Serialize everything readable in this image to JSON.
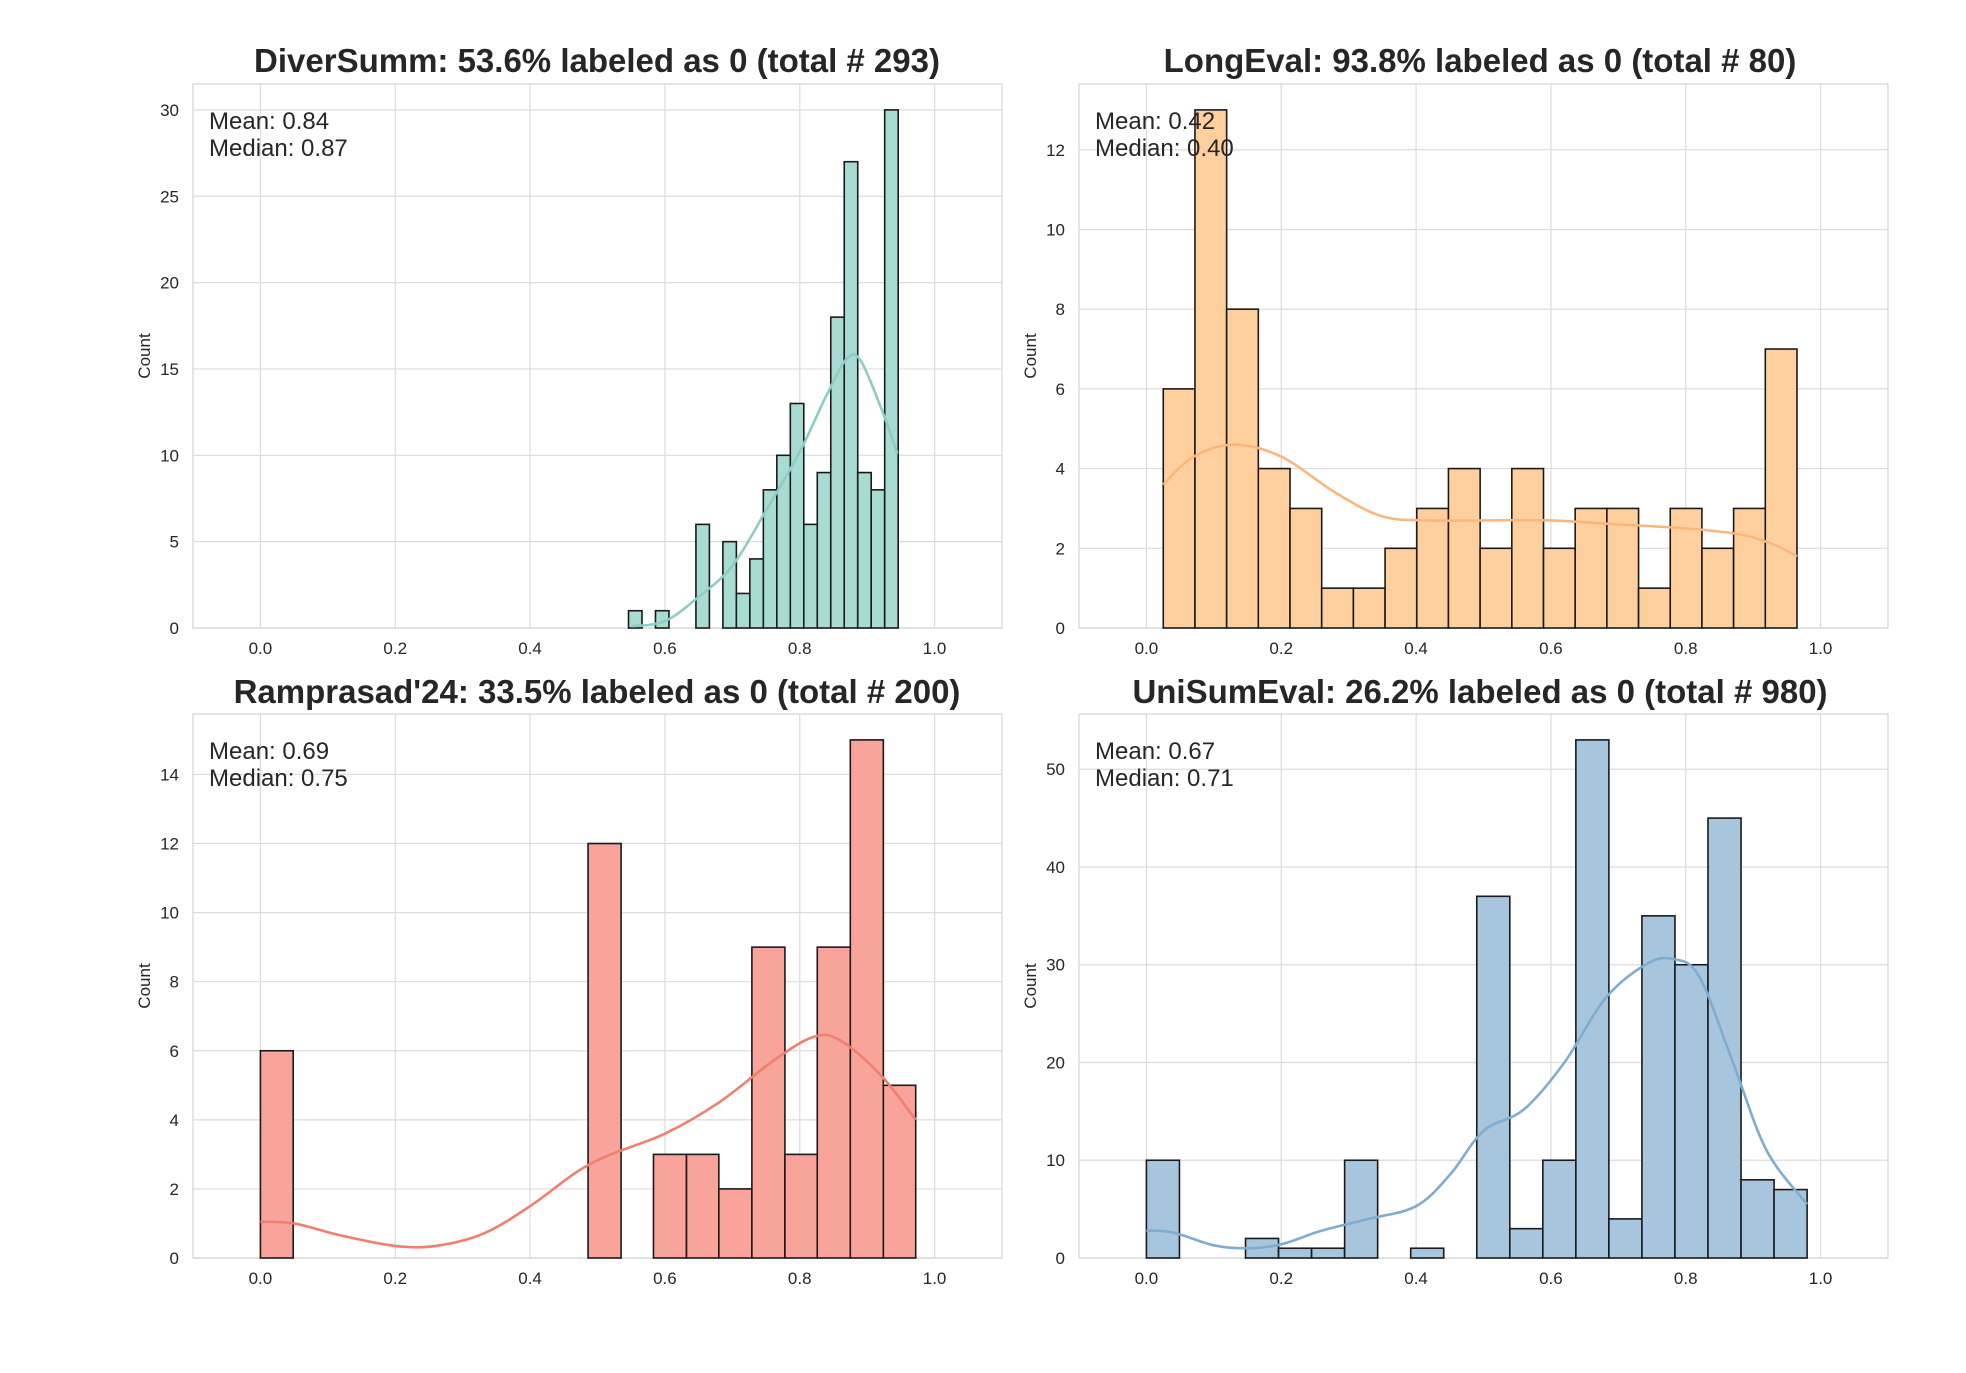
{
  "chart_data": [
    {
      "type": "bar",
      "subtype": "histogram",
      "title": "DiverSumm: 53.6% labeled as 0 (total # 293)",
      "ylabel": "Count",
      "xlabel": "",
      "xlim": [
        -0.1,
        1.1
      ],
      "ylim": [
        0,
        31.5
      ],
      "xticks": [
        "0.0",
        "0.2",
        "0.4",
        "0.6",
        "0.8",
        "1.0"
      ],
      "yticks": [
        "0",
        "5",
        "10",
        "15",
        "20",
        "25",
        "30"
      ],
      "grid": true,
      "color": "#a8dcd3",
      "line_color": "#8ecdc4",
      "stats": [
        "Mean: 0.84",
        "Median: 0.87"
      ],
      "bins": [
        {
          "x0": 0.546,
          "x1": 0.566,
          "count": 1
        },
        {
          "x0": 0.586,
          "x1": 0.606,
          "count": 1
        },
        {
          "x0": 0.646,
          "x1": 0.666,
          "count": 6
        },
        {
          "x0": 0.686,
          "x1": 0.706,
          "count": 5
        },
        {
          "x0": 0.706,
          "x1": 0.726,
          "count": 2
        },
        {
          "x0": 0.726,
          "x1": 0.746,
          "count": 4
        },
        {
          "x0": 0.746,
          "x1": 0.766,
          "count": 8
        },
        {
          "x0": 0.766,
          "x1": 0.786,
          "count": 10
        },
        {
          "x0": 0.786,
          "x1": 0.806,
          "count": 13
        },
        {
          "x0": 0.806,
          "x1": 0.826,
          "count": 6
        },
        {
          "x0": 0.826,
          "x1": 0.846,
          "count": 9
        },
        {
          "x0": 0.846,
          "x1": 0.866,
          "count": 18
        },
        {
          "x0": 0.866,
          "x1": 0.886,
          "count": 27
        },
        {
          "x0": 0.886,
          "x1": 0.906,
          "count": 9
        },
        {
          "x0": 0.906,
          "x1": 0.926,
          "count": 8
        },
        {
          "x0": 0.926,
          "x1": 0.946,
          "count": 30
        }
      ],
      "kde": [
        [
          0.55,
          0.1
        ],
        [
          0.6,
          0.4
        ],
        [
          0.65,
          1.8
        ],
        [
          0.7,
          3.6
        ],
        [
          0.75,
          6.8
        ],
        [
          0.8,
          10.2
        ],
        [
          0.84,
          13.5
        ],
        [
          0.87,
          15.6
        ],
        [
          0.89,
          15.5
        ],
        [
          0.92,
          12.8
        ],
        [
          0.945,
          10.1
        ]
      ]
    },
    {
      "type": "bar",
      "subtype": "histogram",
      "title": "LongEval: 93.8% labeled as 0 (total # 80)",
      "ylabel": "Count",
      "xlabel": "",
      "xlim": [
        -0.1,
        1.1
      ],
      "ylim": [
        0,
        13.65
      ],
      "xticks": [
        "0.0",
        "0.2",
        "0.4",
        "0.6",
        "0.8",
        "1.0"
      ],
      "yticks": [
        "0",
        "2",
        "4",
        "6",
        "8",
        "10",
        "12"
      ],
      "grid": true,
      "color": "#ffd09e",
      "line_color": "#f9b77c",
      "stats": [
        "Mean: 0.42",
        "Median: 0.40"
      ],
      "bins": [
        {
          "x0": 0.025,
          "x1": 0.072,
          "count": 6
        },
        {
          "x0": 0.072,
          "x1": 0.119,
          "count": 13
        },
        {
          "x0": 0.119,
          "x1": 0.166,
          "count": 8
        },
        {
          "x0": 0.166,
          "x1": 0.213,
          "count": 4
        },
        {
          "x0": 0.213,
          "x1": 0.26,
          "count": 3
        },
        {
          "x0": 0.26,
          "x1": 0.307,
          "count": 1
        },
        {
          "x0": 0.307,
          "x1": 0.354,
          "count": 1
        },
        {
          "x0": 0.354,
          "x1": 0.401,
          "count": 2
        },
        {
          "x0": 0.401,
          "x1": 0.448,
          "count": 3
        },
        {
          "x0": 0.448,
          "x1": 0.495,
          "count": 4
        },
        {
          "x0": 0.495,
          "x1": 0.542,
          "count": 2
        },
        {
          "x0": 0.542,
          "x1": 0.589,
          "count": 4
        },
        {
          "x0": 0.589,
          "x1": 0.636,
          "count": 2
        },
        {
          "x0": 0.636,
          "x1": 0.683,
          "count": 3
        },
        {
          "x0": 0.683,
          "x1": 0.73,
          "count": 3
        },
        {
          "x0": 0.73,
          "x1": 0.777,
          "count": 1
        },
        {
          "x0": 0.777,
          "x1": 0.824,
          "count": 3
        },
        {
          "x0": 0.824,
          "x1": 0.871,
          "count": 2
        },
        {
          "x0": 0.871,
          "x1": 0.918,
          "count": 3
        },
        {
          "x0": 0.918,
          "x1": 0.965,
          "count": 7
        }
      ],
      "kde": [
        [
          0.025,
          3.6
        ],
        [
          0.07,
          4.3
        ],
        [
          0.13,
          4.6
        ],
        [
          0.2,
          4.3
        ],
        [
          0.28,
          3.4
        ],
        [
          0.35,
          2.8
        ],
        [
          0.42,
          2.7
        ],
        [
          0.5,
          2.7
        ],
        [
          0.6,
          2.7
        ],
        [
          0.7,
          2.6
        ],
        [
          0.8,
          2.5
        ],
        [
          0.88,
          2.35
        ],
        [
          0.93,
          2.1
        ],
        [
          0.965,
          1.8
        ]
      ]
    },
    {
      "type": "bar",
      "subtype": "histogram",
      "title": "Ramprasad'24: 33.5% labeled as 0 (total # 200)",
      "ylabel": "Count",
      "xlabel": "",
      "xlim": [
        -0.1,
        1.1
      ],
      "ylim": [
        0,
        15.75
      ],
      "xticks": [
        "0.0",
        "0.2",
        "0.4",
        "0.6",
        "0.8",
        "1.0"
      ],
      "yticks": [
        "0",
        "2",
        "4",
        "6",
        "8",
        "10",
        "12",
        "14"
      ],
      "grid": true,
      "color": "#f9a49a",
      "line_color": "#ef7f6f",
      "stats": [
        "Mean: 0.69",
        "Median: 0.75"
      ],
      "bins": [
        {
          "x0": 0.0,
          "x1": 0.0486,
          "count": 6
        },
        {
          "x0": 0.486,
          "x1": 0.535,
          "count": 12
        },
        {
          "x0": 0.583,
          "x1": 0.632,
          "count": 3
        },
        {
          "x0": 0.632,
          "x1": 0.68,
          "count": 3
        },
        {
          "x0": 0.68,
          "x1": 0.729,
          "count": 2
        },
        {
          "x0": 0.729,
          "x1": 0.778,
          "count": 9
        },
        {
          "x0": 0.778,
          "x1": 0.826,
          "count": 3
        },
        {
          "x0": 0.826,
          "x1": 0.875,
          "count": 9
        },
        {
          "x0": 0.875,
          "x1": 0.924,
          "count": 15
        },
        {
          "x0": 0.924,
          "x1": 0.972,
          "count": 5
        }
      ],
      "kde": [
        [
          0.0,
          1.05
        ],
        [
          0.05,
          1.0
        ],
        [
          0.12,
          0.65
        ],
        [
          0.2,
          0.35
        ],
        [
          0.26,
          0.35
        ],
        [
          0.33,
          0.7
        ],
        [
          0.4,
          1.5
        ],
        [
          0.47,
          2.5
        ],
        [
          0.52,
          3.0
        ],
        [
          0.6,
          3.6
        ],
        [
          0.68,
          4.5
        ],
        [
          0.76,
          5.7
        ],
        [
          0.82,
          6.4
        ],
        [
          0.86,
          6.3
        ],
        [
          0.92,
          5.3
        ],
        [
          0.972,
          4.0
        ]
      ]
    },
    {
      "type": "bar",
      "subtype": "histogram",
      "title": "UniSumEval: 26.2% labeled as 0 (total # 980)",
      "ylabel": "Count",
      "xlabel": "",
      "xlim": [
        -0.1,
        1.1
      ],
      "ylim": [
        0,
        55.65
      ],
      "xticks": [
        "0.0",
        "0.2",
        "0.4",
        "0.6",
        "0.8",
        "1.0"
      ],
      "yticks": [
        "0",
        "10",
        "20",
        "30",
        "40",
        "50"
      ],
      "grid": true,
      "color": "#a7c6de",
      "line_color": "#7fadd0",
      "stats": [
        "Mean: 0.67",
        "Median: 0.71"
      ],
      "bins": [
        {
          "x0": 0.0,
          "x1": 0.049,
          "count": 10
        },
        {
          "x0": 0.147,
          "x1": 0.196,
          "count": 2
        },
        {
          "x0": 0.196,
          "x1": 0.245,
          "count": 1
        },
        {
          "x0": 0.245,
          "x1": 0.294,
          "count": 1
        },
        {
          "x0": 0.294,
          "x1": 0.343,
          "count": 10
        },
        {
          "x0": 0.392,
          "x1": 0.441,
          "count": 1
        },
        {
          "x0": 0.49,
          "x1": 0.539,
          "count": 37
        },
        {
          "x0": 0.539,
          "x1": 0.588,
          "count": 3
        },
        {
          "x0": 0.588,
          "x1": 0.637,
          "count": 10
        },
        {
          "x0": 0.637,
          "x1": 0.686,
          "count": 53
        },
        {
          "x0": 0.686,
          "x1": 0.735,
          "count": 4
        },
        {
          "x0": 0.735,
          "x1": 0.784,
          "count": 35
        },
        {
          "x0": 0.784,
          "x1": 0.833,
          "count": 30
        },
        {
          "x0": 0.833,
          "x1": 0.882,
          "count": 45
        },
        {
          "x0": 0.882,
          "x1": 0.931,
          "count": 8
        },
        {
          "x0": 0.931,
          "x1": 0.98,
          "count": 7
        }
      ],
      "kde": [
        [
          0.0,
          2.8
        ],
        [
          0.04,
          2.6
        ],
        [
          0.1,
          1.3
        ],
        [
          0.15,
          1.0
        ],
        [
          0.2,
          1.4
        ],
        [
          0.26,
          2.8
        ],
        [
          0.33,
          4.0
        ],
        [
          0.4,
          5.3
        ],
        [
          0.45,
          8.5
        ],
        [
          0.5,
          13.0
        ],
        [
          0.56,
          15.2
        ],
        [
          0.62,
          20.0
        ],
        [
          0.68,
          26.5
        ],
        [
          0.74,
          30.0
        ],
        [
          0.78,
          30.6
        ],
        [
          0.82,
          28.8
        ],
        [
          0.87,
          20.0
        ],
        [
          0.92,
          11.0
        ],
        [
          0.98,
          5.5
        ]
      ]
    }
  ]
}
